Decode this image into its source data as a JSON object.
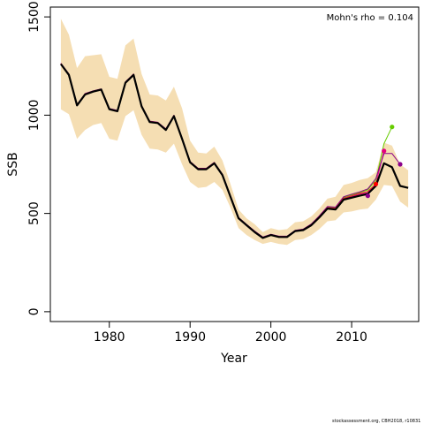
{
  "chart_data": {
    "type": "line",
    "xlabel": "Year",
    "ylabel": "SSB",
    "xlim": [
      1972.7,
      2018.3
    ],
    "ylim": [
      -50,
      1550
    ],
    "x_ticks": [
      1980,
      1990,
      2000,
      2010
    ],
    "y_ticks": [
      0,
      500,
      1000,
      1500
    ],
    "x_tick_labels": [
      "1980",
      "1990",
      "2000",
      "2010"
    ],
    "y_tick_labels": [
      "0",
      "500",
      "1000",
      "1500"
    ],
    "annotation": "Mohn's rho = 0.104",
    "band_color": "#f5deb3",
    "years": [
      1974,
      1975,
      1976,
      1977,
      1978,
      1979,
      1980,
      1981,
      1982,
      1983,
      1984,
      1985,
      1986,
      1987,
      1988,
      1989,
      1990,
      1991,
      1992,
      1993,
      1994,
      1995,
      1996,
      1997,
      1998,
      1999,
      2000,
      2001,
      2002,
      2003,
      2004,
      2005,
      2006,
      2007,
      2008,
      2009,
      2010,
      2011,
      2012,
      2013,
      2014,
      2015,
      2016,
      2017
    ],
    "confidence_band": {
      "lower": [
        1030,
        1005,
        880,
        925,
        950,
        960,
        880,
        870,
        995,
        1025,
        900,
        830,
        825,
        810,
        855,
        750,
        660,
        630,
        635,
        660,
        620,
        530,
        425,
        390,
        365,
        345,
        355,
        345,
        340,
        365,
        370,
        390,
        420,
        460,
        465,
        505,
        510,
        520,
        525,
        570,
        645,
        640,
        560,
        530
      ],
      "upper": [
        1490,
        1410,
        1240,
        1300,
        1305,
        1310,
        1195,
        1185,
        1355,
        1390,
        1210,
        1105,
        1100,
        1075,
        1145,
        1035,
        870,
        810,
        805,
        840,
        770,
        650,
        520,
        475,
        445,
        405,
        425,
        415,
        420,
        455,
        460,
        485,
        525,
        575,
        585,
        645,
        655,
        670,
        680,
        710,
        860,
        845,
        750,
        720
      ]
    },
    "series": [
      {
        "color": "#000000",
        "lw": 2.2,
        "values": [
          1260,
          1205,
          1050,
          1105,
          1120,
          1130,
          1030,
          1020,
          1165,
          1205,
          1045,
          965,
          960,
          925,
          995,
          880,
          760,
          725,
          725,
          755,
          695,
          585,
          475,
          440,
          405,
          375,
          390,
          380,
          380,
          410,
          415,
          440,
          480,
          525,
          520,
          570,
          580,
          590,
          600,
          640,
          755,
          735,
          640,
          630
        ]
      },
      {
        "color": "#d62728",
        "lw": 1,
        "values": [
          1262,
          1208,
          1052,
          1108,
          1122,
          1132,
          1032,
          1022,
          1168,
          1208,
          1048,
          968,
          962,
          928,
          998,
          882,
          763,
          728,
          728,
          758,
          698,
          588,
          478,
          442,
          408,
          378,
          392,
          382,
          382,
          412,
          418,
          443,
          484,
          530,
          526,
          578,
          590,
          602,
          612,
          650
        ]
      },
      {
        "color": "#8b008b",
        "lw": 1,
        "values": [
          1264,
          1210,
          1054,
          1110,
          1124,
          1134,
          1034,
          1024,
          1170,
          1210,
          1050,
          970,
          964,
          930,
          1000,
          884,
          765,
          730,
          730,
          760,
          700,
          590,
          480,
          444,
          410,
          380,
          394,
          384,
          384,
          414,
          420,
          446,
          488,
          535,
          532,
          585,
          598,
          610,
          625,
          678,
          805,
          805,
          750
        ]
      },
      {
        "color": "#66cc00",
        "lw": 1,
        "values": [
          1263,
          1209,
          1053,
          1109,
          1123,
          1133,
          1033,
          1023,
          1169,
          1209,
          1049,
          969,
          963,
          929,
          999,
          883,
          764,
          729,
          729,
          759,
          699,
          589,
          479,
          443,
          409,
          379,
          393,
          383,
          383,
          413,
          419,
          445,
          486,
          533,
          529,
          582,
          595,
          607,
          620,
          668,
          855,
          940
        ]
      },
      {
        "color": "#e6007e",
        "lw": 1,
        "values": [
          1261,
          1207,
          1051,
          1107,
          1121,
          1131,
          1031,
          1021,
          1167,
          1207,
          1047,
          967,
          961,
          927,
          997,
          881,
          762,
          727,
          727,
          757,
          697,
          587,
          477,
          441,
          407,
          377,
          391,
          381,
          381,
          411,
          417,
          442,
          483,
          528,
          524,
          576,
          586,
          598,
          605,
          650,
          818
        ]
      },
      {
        "color": "#ff66cc",
        "lw": 1,
        "values": [
          1260,
          1206,
          1050,
          1106,
          1120,
          1130,
          1030,
          1020,
          1166,
          1206,
          1046,
          966,
          960,
          926,
          996,
          880,
          761,
          726,
          726,
          756,
          696,
          586,
          476,
          440,
          406,
          376,
          390,
          380,
          380,
          410,
          416,
          441,
          482,
          527,
          522,
          574,
          584,
          593,
          590
        ]
      }
    ],
    "terminal_points": [
      {
        "x": 2012,
        "y": 590,
        "color": "#8b008b"
      },
      {
        "x": 2013,
        "y": 650,
        "color": "#ff0000"
      },
      {
        "x": 2014,
        "y": 818,
        "color": "#e6007e"
      },
      {
        "x": 2015,
        "y": 940,
        "color": "#66cc00"
      },
      {
        "x": 2016,
        "y": 750,
        "color": "#8b008b"
      }
    ]
  },
  "footer": "stockassessment.org, CBH2018, r10831"
}
